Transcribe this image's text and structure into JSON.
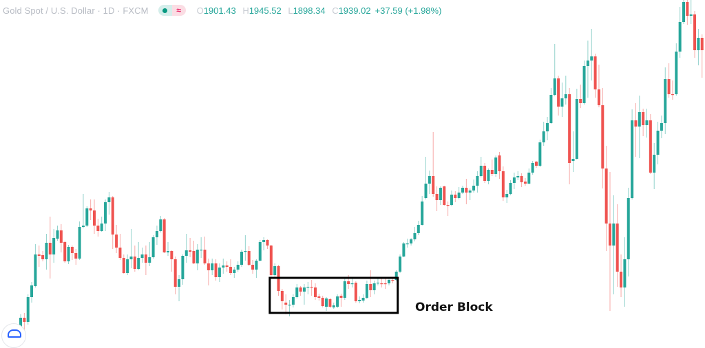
{
  "header": {
    "symbol_title": "Gold Spot / U.S. Dollar · 1D · FXCM",
    "status_icon": "market-open-dot-icon",
    "wave_icon": "≈",
    "ohlc": [
      {
        "label": "O",
        "value": "1901.43"
      },
      {
        "label": "H",
        "value": "1945.52"
      },
      {
        "label": "L",
        "value": "1898.34"
      },
      {
        "label": "C",
        "value": "1939.02"
      }
    ],
    "change": "+37.59 (+1.98%)"
  },
  "colors": {
    "up": "#26a69a",
    "down": "#ef5350",
    "annotation": "#000000"
  },
  "logo_icon": "tradingview-logo-icon",
  "chart_data": {
    "type": "candlestick",
    "title": "Gold Spot / U.S. Dollar · 1D · FXCM",
    "xlabel": "",
    "ylabel": "",
    "ylim": [
      1610,
      2100
    ],
    "grid": false,
    "candle_format": [
      "open",
      "high",
      "low",
      "close"
    ],
    "candles": [
      [
        1622,
        1626,
        1610,
        1615
      ],
      [
        1622,
        1643,
        1618,
        1638
      ],
      [
        1638,
        1645,
        1615,
        1632
      ],
      [
        1632,
        1672,
        1628,
        1668
      ],
      [
        1668,
        1690,
        1660,
        1685
      ],
      [
        1684,
        1745,
        1682,
        1730
      ],
      [
        1730,
        1743,
        1712,
        1728
      ],
      [
        1729,
        1735,
        1720,
        1723
      ],
      [
        1723,
        1760,
        1708,
        1747
      ],
      [
        1747,
        1785,
        1695,
        1730
      ],
      [
        1730,
        1767,
        1718,
        1754
      ],
      [
        1753,
        1772,
        1750,
        1765
      ],
      [
        1765,
        1774,
        1733,
        1747
      ],
      [
        1748,
        1750,
        1718,
        1720
      ],
      [
        1720,
        1744,
        1716,
        1741
      ],
      [
        1741,
        1743,
        1722,
        1732
      ],
      [
        1732,
        1738,
        1715,
        1724
      ],
      [
        1724,
        1778,
        1722,
        1770
      ],
      [
        1770,
        1818,
        1768,
        1772
      ],
      [
        1772,
        1800,
        1770,
        1797
      ],
      [
        1797,
        1810,
        1780,
        1794
      ],
      [
        1794,
        1810,
        1760,
        1772
      ],
      [
        1772,
        1782,
        1756,
        1764
      ],
      [
        1764,
        1785,
        1763,
        1775
      ],
      [
        1775,
        1810,
        1764,
        1806
      ],
      [
        1806,
        1821,
        1788,
        1813
      ],
      [
        1813,
        1815,
        1738,
        1759
      ],
      [
        1759,
        1773,
        1732,
        1740
      ],
      [
        1740,
        1760,
        1722,
        1725
      ],
      [
        1725,
        1730,
        1702,
        1703
      ],
      [
        1703,
        1730,
        1700,
        1723
      ],
      [
        1723,
        1767,
        1710,
        1727
      ],
      [
        1727,
        1743,
        1705,
        1709
      ],
      [
        1709,
        1748,
        1707,
        1725
      ],
      [
        1725,
        1740,
        1718,
        1730
      ],
      [
        1730,
        1743,
        1700,
        1718
      ],
      [
        1718,
        1748,
        1713,
        1726
      ],
      [
        1726,
        1758,
        1724,
        1755
      ],
      [
        1755,
        1772,
        1744,
        1764
      ],
      [
        1764,
        1786,
        1762,
        1781
      ],
      [
        1781,
        1783,
        1732,
        1733
      ],
      [
        1733,
        1748,
        1728,
        1735
      ],
      [
        1735,
        1736,
        1705,
        1723
      ],
      [
        1723,
        1727,
        1672,
        1683
      ],
      [
        1683,
        1700,
        1662,
        1694
      ],
      [
        1694,
        1730,
        1686,
        1728
      ],
      [
        1728,
        1760,
        1718,
        1736
      ],
      [
        1736,
        1754,
        1726,
        1734
      ],
      [
        1735,
        1750,
        1716,
        1717
      ],
      [
        1717,
        1745,
        1707,
        1737
      ],
      [
        1736,
        1755,
        1725,
        1737
      ],
      [
        1737,
        1756,
        1715,
        1717
      ],
      [
        1717,
        1724,
        1685,
        1707
      ],
      [
        1707,
        1724,
        1700,
        1717
      ],
      [
        1717,
        1723,
        1692,
        1697
      ],
      [
        1697,
        1717,
        1690,
        1711
      ],
      [
        1711,
        1724,
        1702,
        1714
      ],
      [
        1714,
        1720,
        1705,
        1712
      ],
      [
        1712,
        1723,
        1700,
        1703
      ],
      [
        1703,
        1712,
        1696,
        1708
      ],
      [
        1708,
        1720,
        1705,
        1715
      ],
      [
        1715,
        1737,
        1712,
        1734
      ],
      [
        1734,
        1758,
        1721,
        1735
      ],
      [
        1735,
        1742,
        1713,
        1715
      ],
      [
        1715,
        1722,
        1702,
        1708
      ],
      [
        1708,
        1723,
        1696,
        1721
      ],
      [
        1721,
        1751,
        1720,
        1748
      ],
      [
        1748,
        1755,
        1736,
        1751
      ],
      [
        1751,
        1752,
        1738,
        1743
      ],
      [
        1743,
        1744,
        1698,
        1700
      ],
      [
        1700,
        1717,
        1698,
        1713
      ],
      [
        1713,
        1715,
        1670,
        1677
      ],
      [
        1677,
        1680,
        1650,
        1662
      ],
      [
        1660,
        1672,
        1643,
        1657
      ],
      [
        1656,
        1664,
        1640,
        1657
      ],
      [
        1657,
        1672,
        1653,
        1668
      ],
      [
        1668,
        1687,
        1666,
        1682
      ],
      [
        1682,
        1684,
        1670,
        1676
      ],
      [
        1676,
        1687,
        1657,
        1682
      ],
      [
        1682,
        1690,
        1672,
        1683
      ],
      [
        1683,
        1693,
        1670,
        1682
      ],
      [
        1682,
        1688,
        1664,
        1668
      ],
      [
        1669,
        1673,
        1663,
        1667
      ],
      [
        1667,
        1670,
        1653,
        1655
      ],
      [
        1654,
        1668,
        1648,
        1666
      ],
      [
        1665,
        1667,
        1652,
        1654
      ],
      [
        1653,
        1660,
        1651,
        1656
      ],
      [
        1654,
        1672,
        1652,
        1669
      ],
      [
        1670,
        1673,
        1654,
        1667
      ],
      [
        1667,
        1695,
        1664,
        1691
      ],
      [
        1691,
        1700,
        1680,
        1687
      ],
      [
        1687,
        1697,
        1682,
        1688
      ],
      [
        1689,
        1691,
        1660,
        1662
      ],
      [
        1662,
        1669,
        1659,
        1664
      ],
      [
        1663,
        1672,
        1660,
        1667
      ],
      [
        1667,
        1692,
        1665,
        1687
      ],
      [
        1687,
        1707,
        1668,
        1678
      ],
      [
        1678,
        1692,
        1672,
        1688
      ],
      [
        1688,
        1696,
        1685,
        1689
      ],
      [
        1688,
        1696,
        1682,
        1687
      ],
      [
        1688,
        1696,
        1680,
        1687
      ],
      [
        1688,
        1697,
        1685,
        1693
      ],
      [
        1693,
        1697,
        1688,
        1692
      ],
      [
        1693,
        1707,
        1691,
        1705
      ],
      [
        1705,
        1730,
        1703,
        1727
      ],
      [
        1727,
        1748,
        1726,
        1746
      ],
      [
        1745,
        1753,
        1740,
        1746
      ],
      [
        1746,
        1754,
        1743,
        1752
      ],
      [
        1752,
        1770,
        1749,
        1761
      ],
      [
        1761,
        1779,
        1758,
        1773
      ],
      [
        1773,
        1815,
        1772,
        1807
      ],
      [
        1812,
        1872,
        1810,
        1833
      ],
      [
        1833,
        1852,
        1818,
        1844
      ],
      [
        1844,
        1908,
        1814,
        1818
      ],
      [
        1818,
        1829,
        1793,
        1809
      ],
      [
        1809,
        1829,
        1802,
        1827
      ],
      [
        1829,
        1830,
        1801,
        1802
      ],
      [
        1802,
        1807,
        1786,
        1801
      ],
      [
        1802,
        1823,
        1800,
        1817
      ],
      [
        1817,
        1822,
        1806,
        1812
      ],
      [
        1812,
        1828,
        1810,
        1820
      ],
      [
        1820,
        1830,
        1818,
        1827
      ],
      [
        1827,
        1840,
        1803,
        1820
      ],
      [
        1820,
        1826,
        1809,
        1823
      ],
      [
        1823,
        1839,
        1820,
        1830
      ],
      [
        1830,
        1851,
        1820,
        1844
      ],
      [
        1844,
        1872,
        1842,
        1859
      ],
      [
        1859,
        1863,
        1834,
        1837
      ],
      [
        1837,
        1855,
        1832,
        1853
      ],
      [
        1853,
        1868,
        1844,
        1847
      ],
      [
        1847,
        1874,
        1843,
        1871
      ],
      [
        1874,
        1879,
        1840,
        1851
      ],
      [
        1851,
        1858,
        1808,
        1813
      ],
      [
        1813,
        1824,
        1805,
        1818
      ],
      [
        1818,
        1838,
        1816,
        1834
      ],
      [
        1834,
        1849,
        1825,
        1842
      ],
      [
        1842,
        1851,
        1838,
        1844
      ],
      [
        1844,
        1848,
        1828,
        1835
      ],
      [
        1836,
        1841,
        1830,
        1833
      ],
      [
        1833,
        1855,
        1832,
        1849
      ],
      [
        1849,
        1866,
        1846,
        1863
      ],
      [
        1865,
        1866,
        1856,
        1859
      ],
      [
        1859,
        1897,
        1857,
        1893
      ],
      [
        1893,
        1923,
        1888,
        1909
      ],
      [
        1909,
        1930,
        1896,
        1921
      ],
      [
        1921,
        1972,
        1920,
        1962
      ],
      [
        1962,
        2036,
        1960,
        1986
      ],
      [
        1986,
        1990,
        1932,
        1945
      ],
      [
        1945,
        1980,
        1930,
        1957
      ],
      [
        1957,
        1990,
        1948,
        1963
      ],
      [
        1963,
        1972,
        1832,
        1863
      ],
      [
        1866,
        1909,
        1850,
        1869
      ],
      [
        1869,
        1971,
        1868,
        1956
      ],
      [
        1956,
        1977,
        1943,
        1950
      ],
      [
        1950,
        2012,
        1948,
        2004
      ],
      [
        2004,
        2041,
        1958,
        2012
      ],
      [
        2012,
        2058,
        1983,
        2018
      ],
      [
        2018,
        2022,
        1958,
        1970
      ],
      [
        1970,
        2006,
        1944,
        1947
      ],
      [
        1947,
        1972,
        1826,
        1855
      ],
      [
        1855,
        1888,
        1735,
        1775
      ],
      [
        1775,
        1850,
        1648,
        1743
      ],
      [
        1743,
        1816,
        1672,
        1775
      ],
      [
        1775,
        1803,
        1683,
        1705
      ],
      [
        1705,
        1730,
        1668,
        1682
      ],
      [
        1682,
        1755,
        1654,
        1723
      ],
      [
        1723,
        1827,
        1698,
        1812
      ],
      [
        1812,
        1941,
        1810,
        1925
      ],
      [
        1925,
        1950,
        1872,
        1916
      ],
      [
        1916,
        1961,
        1870,
        1937
      ],
      [
        1937,
        1942,
        1902,
        1918
      ],
      [
        1918,
        1942,
        1900,
        1925
      ],
      [
        1925,
        1934,
        1847,
        1849
      ],
      [
        1849,
        1892,
        1825,
        1875
      ],
      [
        1875,
        1923,
        1861,
        1910
      ],
      [
        1910,
        1932,
        1899,
        1921
      ],
      [
        1921,
        2002,
        1905,
        1985
      ],
      [
        1985,
        2008,
        1958,
        1963
      ],
      [
        1963,
        1983,
        1955,
        1962
      ],
      [
        1963,
        2037,
        1961,
        2025
      ],
      [
        2025,
        2090,
        2016,
        2068
      ],
      [
        2068,
        2100,
        2065,
        2097
      ],
      [
        2097,
        2100,
        2064,
        2077
      ],
      [
        2077,
        2100,
        2065,
        2079
      ],
      [
        2079,
        2084,
        2016,
        2027
      ],
      [
        2027,
        2058,
        2005,
        2045
      ],
      [
        2045,
        2050,
        1987,
        2027
      ]
    ],
    "annotations": [
      {
        "type": "rectangle",
        "label": "Order Block",
        "candle_range": [
          70,
          104
        ],
        "price_range": [
          1645,
          1696
        ]
      }
    ]
  }
}
